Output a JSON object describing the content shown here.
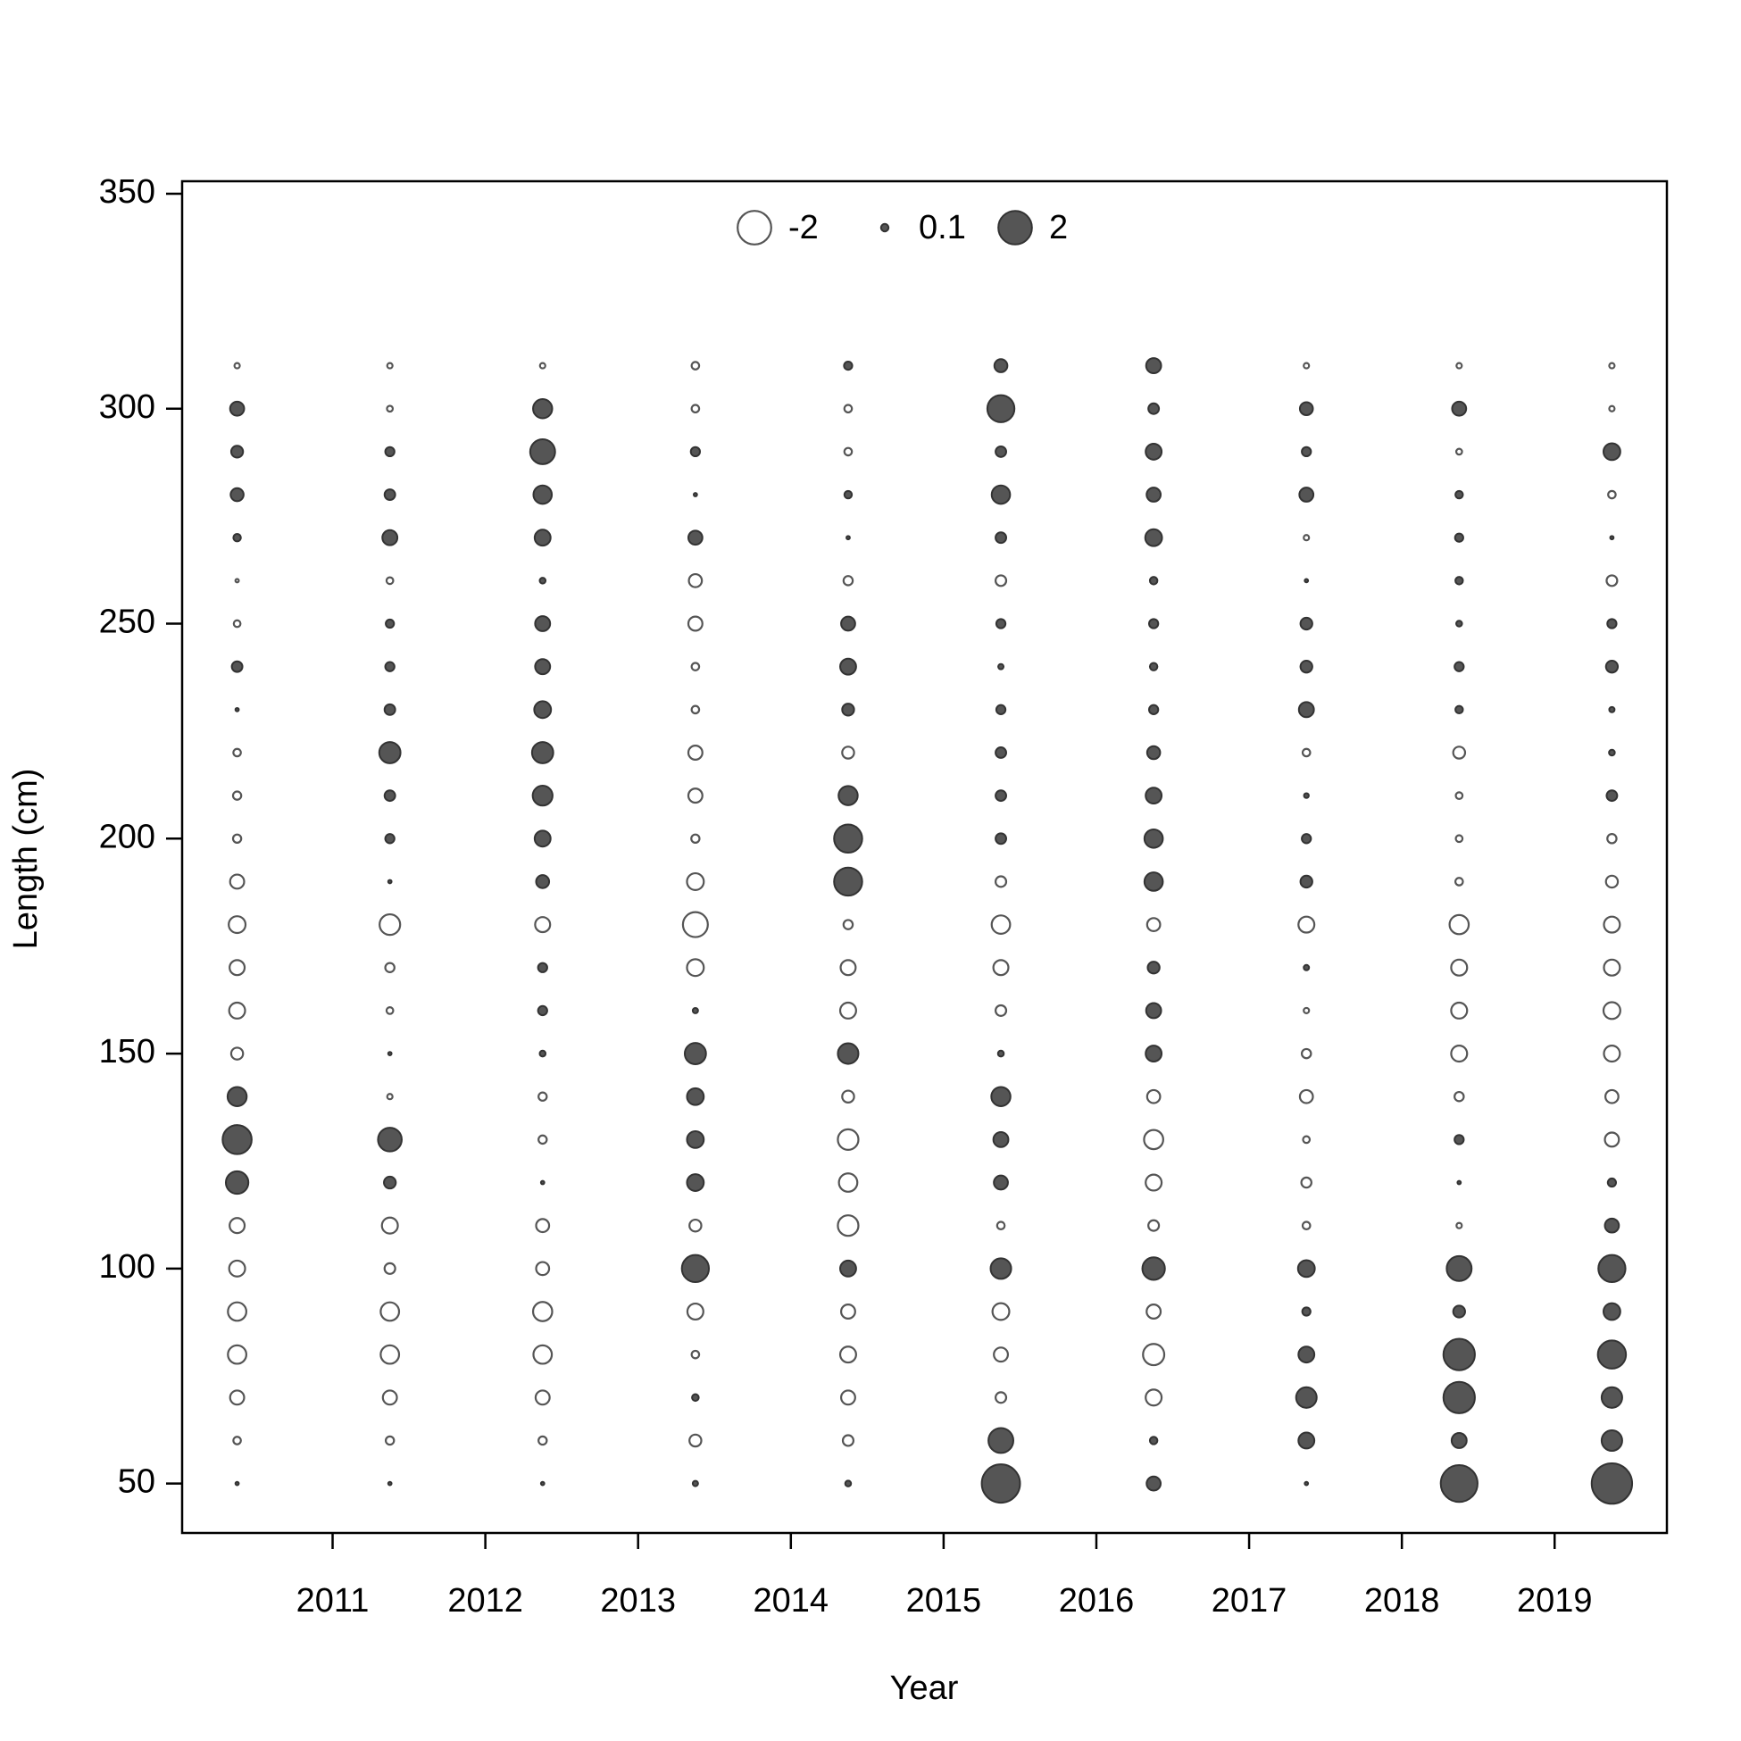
{
  "chart_data": {
    "type": "bubble",
    "x_label": "Year",
    "y_label": "Length (cm)",
    "xlim": [
      2010.015,
      2019.735
    ],
    "xticks": [
      2011,
      2012,
      2013,
      2014,
      2015,
      2016,
      2017,
      2018,
      2019
    ],
    "ylim": [
      38.5,
      352.9
    ],
    "yticks": [
      50,
      100,
      150,
      200,
      250,
      300,
      350
    ],
    "x": [
      2010.375,
      2011.375,
      2012.375,
      2013.375,
      2014.375,
      2015.375,
      2016.375,
      2017.375,
      2018.375,
      2019.375
    ],
    "y": [
      50,
      60,
      70,
      80,
      90,
      100,
      110,
      120,
      130,
      140,
      150,
      160,
      170,
      180,
      190,
      200,
      210,
      220,
      230,
      240,
      250,
      260,
      270,
      280,
      290,
      300,
      310
    ],
    "positive_color": "#555555",
    "negative_color": "#ffffff",
    "values": [
      [
        0.02,
        -0.1,
        -0.35,
        -0.6,
        -0.6,
        -0.45,
        -0.4,
        0.9,
        1.5,
        0.65,
        -0.25,
        -0.45,
        -0.4,
        -0.5,
        -0.35,
        -0.12,
        -0.12,
        -0.1,
        0.02,
        0.2,
        -0.08,
        -0.02,
        0.1,
        0.3,
        0.25,
        0.35,
        -0.05
      ],
      [
        0.02,
        -0.12,
        -0.35,
        -0.6,
        -0.6,
        -0.2,
        -0.45,
        0.25,
        1.0,
        -0.05,
        0.02,
        -0.08,
        -0.15,
        -0.75,
        0.02,
        0.15,
        0.2,
        0.8,
        0.2,
        0.15,
        0.12,
        -0.08,
        0.4,
        0.2,
        0.15,
        -0.06,
        -0.05
      ],
      [
        0.02,
        -0.12,
        -0.35,
        -0.6,
        -0.65,
        -0.3,
        -0.3,
        0.02,
        -0.12,
        -0.12,
        0.06,
        0.15,
        0.15,
        -0.4,
        0.3,
        0.45,
        0.7,
        0.8,
        0.5,
        0.4,
        0.4,
        0.06,
        0.45,
        0.6,
        1.1,
        0.65,
        -0.05
      ],
      [
        0.05,
        -0.25,
        0.08,
        -0.1,
        -0.45,
        1.3,
        -0.25,
        0.5,
        0.5,
        0.5,
        0.8,
        0.05,
        -0.5,
        -1.1,
        -0.5,
        -0.12,
        -0.35,
        -0.35,
        -0.1,
        -0.1,
        -0.35,
        -0.3,
        0.35,
        0.02,
        0.15,
        -0.1,
        -0.1
      ],
      [
        0.06,
        -0.2,
        -0.35,
        -0.45,
        -0.35,
        0.45,
        -0.75,
        -0.6,
        -0.75,
        -0.25,
        0.75,
        -0.45,
        -0.4,
        -0.15,
        1.4,
        1.4,
        0.65,
        -0.25,
        0.25,
        0.45,
        0.35,
        -0.15,
        0.02,
        0.1,
        -0.1,
        -0.1,
        0.12
      ],
      [
        2.6,
        1.1,
        -0.2,
        -0.35,
        -0.5,
        0.75,
        -0.1,
        0.35,
        0.4,
        0.65,
        0.06,
        -0.2,
        -0.4,
        -0.6,
        -0.2,
        0.2,
        0.2,
        0.2,
        0.15,
        0.05,
        0.15,
        -0.2,
        0.2,
        0.6,
        0.2,
        1.3,
        0.3
      ],
      [
        0.35,
        0.1,
        -0.45,
        -0.8,
        -0.35,
        0.9,
        -0.2,
        -0.45,
        -0.65,
        -0.3,
        0.45,
        0.4,
        0.25,
        -0.3,
        0.6,
        0.6,
        0.45,
        0.3,
        0.15,
        0.1,
        0.15,
        0.1,
        0.5,
        0.35,
        0.45,
        0.2,
        0.4
      ],
      [
        0.02,
        0.45,
        0.75,
        0.45,
        0.12,
        0.5,
        -0.1,
        -0.18,
        -0.08,
        -0.3,
        -0.15,
        -0.05,
        0.05,
        -0.45,
        0.25,
        0.15,
        0.04,
        -0.1,
        0.4,
        0.25,
        0.25,
        0.02,
        -0.05,
        0.35,
        0.15,
        0.3,
        -0.05
      ],
      [
        2.4,
        0.4,
        1.75,
        1.75,
        0.25,
        1.1,
        -0.05,
        0.02,
        0.15,
        -0.15,
        -0.45,
        -0.45,
        -0.45,
        -0.65,
        -0.1,
        -0.08,
        -0.08,
        -0.25,
        0.1,
        0.15,
        0.06,
        0.1,
        0.12,
        0.1,
        -0.06,
        0.35,
        -0.05
      ],
      [
        2.9,
        0.75,
        0.75,
        1.4,
        0.5,
        1.3,
        0.35,
        0.12,
        -0.35,
        -0.3,
        -0.45,
        -0.5,
        -0.45,
        -0.45,
        -0.25,
        -0.15,
        0.2,
        0.06,
        0.05,
        0.25,
        0.15,
        -0.2,
        0.02,
        -0.1,
        0.5,
        -0.05,
        -0.05
      ]
    ],
    "legend": {
      "position": "top",
      "values": [
        -2,
        0.1,
        2
      ]
    }
  }
}
